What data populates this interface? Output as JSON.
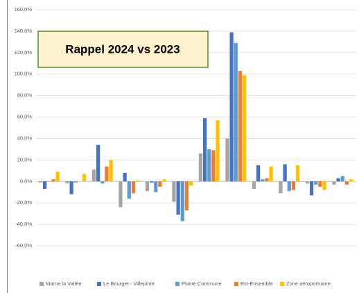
{
  "chart_data": {
    "type": "bar",
    "title": "Rappel 2024 vs 2023",
    "categories": [
      null,
      null,
      null,
      null,
      null,
      null,
      null,
      null,
      null,
      null,
      null,
      null
    ],
    "series": [
      {
        "name": "Marne la Vallée",
        "color": "#a5a5a5",
        "values": [
          -1,
          -2,
          11,
          -24,
          -9,
          -19,
          26,
          40,
          -7,
          -11,
          -2,
          -3
        ]
      },
      {
        "name": "Le Bourget - Villepinte",
        "color": "#4472c4",
        "values": [
          -7,
          -12,
          34,
          8,
          -1,
          -31,
          59,
          139,
          15,
          16,
          -13,
          3
        ]
      },
      {
        "name": "Plaine Commune",
        "color": "#5b9bd5",
        "values": [
          0,
          -1,
          -2,
          -16,
          -10,
          -37,
          30,
          129,
          2,
          -9,
          -3,
          5
        ]
      },
      {
        "name": "Est-Ensemble",
        "color": "#ed7d31",
        "values": [
          2,
          0,
          14,
          -11,
          -5,
          -27,
          29,
          103,
          3,
          -8,
          -5,
          -3
        ]
      },
      {
        "name": "Zone aéroportuaire",
        "color": "#ffc000",
        "values": [
          9,
          7,
          20,
          1,
          2,
          -4,
          57,
          99,
          14,
          15,
          -8,
          2
        ]
      }
    ],
    "ylim": [
      -60,
      160
    ],
    "yticks": [
      {
        "value": -60,
        "label": "-60,0%"
      },
      {
        "value": -40,
        "label": "-40,0%"
      },
      {
        "value": -20,
        "label": "-20,0%"
      },
      {
        "value": 0,
        "label": "0,0%"
      },
      {
        "value": 20,
        "label": "20,0%"
      },
      {
        "value": 40,
        "label": "40,0%"
      },
      {
        "value": 60,
        "label": "60,0%"
      },
      {
        "value": 80,
        "label": "80,0%"
      },
      {
        "value": 100,
        "label": "100,0%"
      },
      {
        "value": 120,
        "label": "120,0%"
      },
      {
        "value": 140,
        "label": "140,0%"
      },
      {
        "value": 160,
        "label": "160,0%"
      }
    ],
    "grid": true,
    "legend": "bottom"
  }
}
